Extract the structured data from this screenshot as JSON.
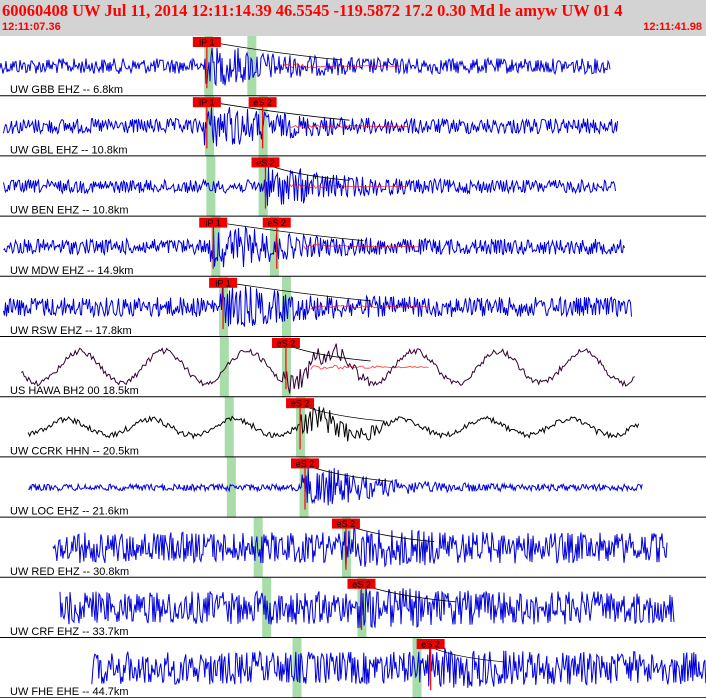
{
  "header": {
    "title": "60060408 UW Jul 11, 2014 12:11:14.39    46.5545 -119.5872 17.2 0.30 Md le amyw UW 01    4",
    "time_start": "12:11:07.36",
    "time_end": "12:11:41.98"
  },
  "colors": {
    "header_bg": "#d3d3d3",
    "header_text": "#ff0000",
    "trace_blue": "#0000dd",
    "trace_purple": "#330033",
    "trace_black": "#000000",
    "pick_box": "#ee0000",
    "pick_line": "#ff0000",
    "green_band": "#a8dca8",
    "divider": "#000000",
    "arrival_curve": "#000000"
  },
  "traces": [
    {
      "label": "UW GBB EHZ -- 6.8km",
      "color": "blue",
      "picks": [
        {
          "text": "iP 1",
          "t": 0.293
        }
      ],
      "trace_start": 0.0,
      "trace_end": 0.865,
      "amp": 0.35,
      "eq_amp": 0.9,
      "green": [
        0.295,
        0.356
      ],
      "s_time": 0.4
    },
    {
      "label": "UW GBL EHZ -- 10.8km",
      "color": "blue",
      "picks": [
        {
          "text": "iP 1",
          "t": 0.293
        },
        {
          "text": "eS 2",
          "t": 0.372
        }
      ],
      "trace_start": 0.005,
      "trace_end": 0.875,
      "amp": 0.35,
      "eq_amp": 0.95,
      "green": [
        0.296,
        0.372
      ],
      "s_time": 0.41
    },
    {
      "label": "UW BEN EHZ -- 10.8km",
      "color": "blue",
      "picks": [
        {
          "text": "eS 2",
          "t": 0.376
        }
      ],
      "trace_start": 0.005,
      "trace_end": 0.872,
      "amp": 0.3,
      "eq_amp": 0.9,
      "green": [
        0.298,
        0.372
      ],
      "s_time": 0.41
    },
    {
      "label": "UW MDW EHZ -- 14.9km",
      "color": "blue",
      "picks": [
        {
          "text": "iP 1",
          "t": 0.302
        },
        {
          "text": "eS 2",
          "t": 0.392
        }
      ],
      "trace_start": 0.005,
      "trace_end": 0.885,
      "amp": 0.35,
      "eq_amp": 0.95,
      "green": [
        0.305,
        0.388
      ],
      "s_time": 0.43
    },
    {
      "label": "UW RSW EHZ -- 17.8km",
      "color": "blue",
      "picks": [
        {
          "text": "iP 1",
          "t": 0.316
        }
      ],
      "trace_start": 0.005,
      "trace_end": 0.895,
      "amp": 0.45,
      "eq_amp": 0.95,
      "green": [
        0.316,
        0.405
      ],
      "s_time": 0.44
    },
    {
      "label": "US HAWA BH2 00 18.5km",
      "color": "purple",
      "picks": [
        {
          "text": "eS 2",
          "t": 0.405
        }
      ],
      "trace_start": 0.03,
      "trace_end": 0.9,
      "amp": 0.1,
      "eq_amp": 0.55,
      "green": [
        0.317,
        0.405
      ],
      "s_time": 0.44
    },
    {
      "label": "UW CCRK HHN -- 20.5km",
      "color": "black",
      "picks": [
        {
          "text": "eS 2",
          "t": 0.425
        }
      ],
      "trace_start": 0.04,
      "trace_end": 0.905,
      "amp": 0.1,
      "eq_amp": 0.6,
      "green": [
        0.324,
        0.425
      ],
      "s_time": 0.46
    },
    {
      "label": "UW LOC EHZ -- 21.6km",
      "color": "blue",
      "picks": [
        {
          "text": "eS 2",
          "t": 0.432
        }
      ],
      "trace_start": 0.04,
      "trace_end": 0.91,
      "amp": 0.15,
      "eq_amp": 0.9,
      "green": [
        0.327,
        0.43
      ],
      "s_time": 0.47
    },
    {
      "label": "UW RED EHZ -- 30.8km",
      "color": "blue",
      "picks": [
        {
          "text": "eS 2",
          "t": 0.49
        }
      ],
      "trace_start": 0.075,
      "trace_end": 0.945,
      "amp": 0.7,
      "eq_amp": 0.95,
      "green": [
        0.365,
        0.49
      ],
      "s_time": 0.53
    },
    {
      "label": "UW CRF EHZ -- 33.7km",
      "color": "blue",
      "picks": [
        {
          "text": "eS 2",
          "t": 0.512
        }
      ],
      "trace_start": 0.085,
      "trace_end": 0.955,
      "amp": 0.75,
      "eq_amp": 0.95,
      "green": [
        0.377,
        0.512
      ],
      "s_time": 0.56
    },
    {
      "label": "UW FHE EHE -- 44.7km",
      "color": "blue",
      "picks": [
        {
          "text": "eS 2",
          "t": 0.61
        }
      ],
      "trace_start": 0.13,
      "trace_end": 1.0,
      "amp": 0.75,
      "eq_amp": 0.95,
      "green": [
        0.42,
        0.59
      ],
      "s_time": 0.63
    }
  ]
}
